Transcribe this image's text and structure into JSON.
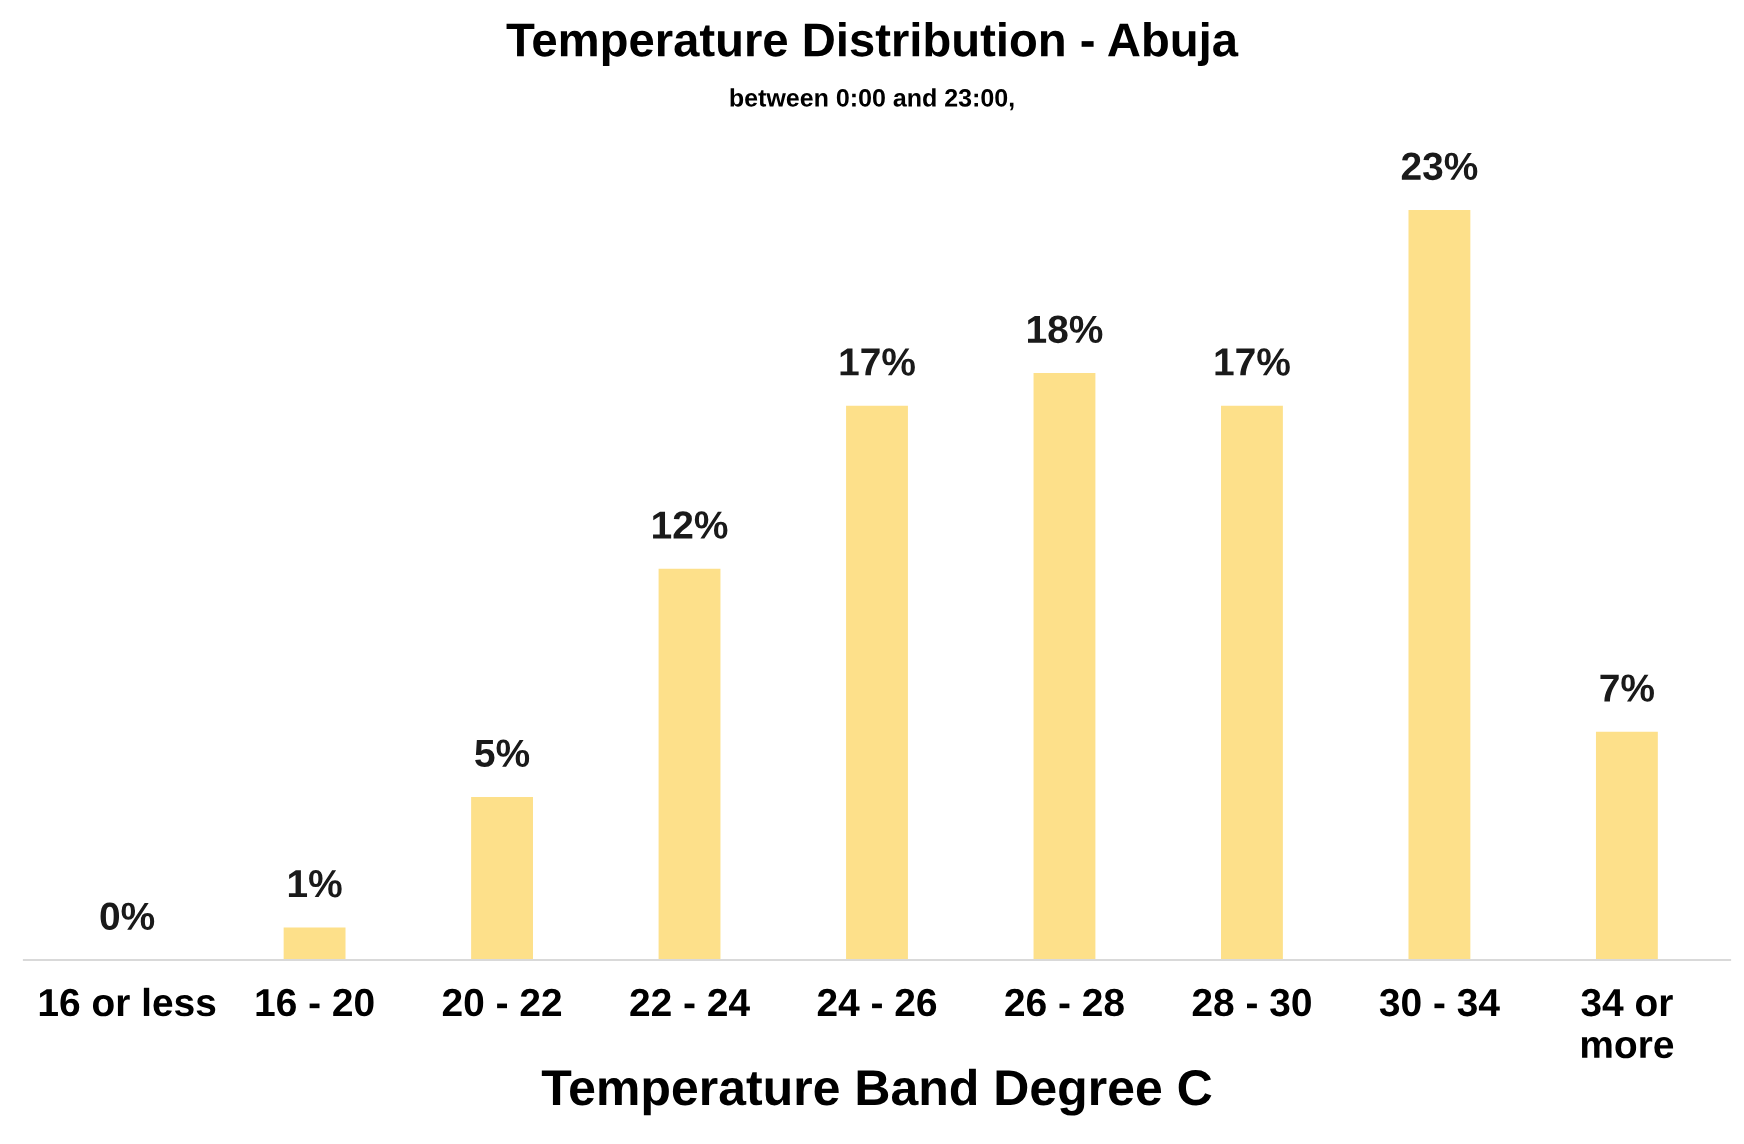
{
  "chart_data": {
    "type": "bar",
    "title": "Temperature Distribution - Abuja",
    "subtitle": "between 0:00 and 23:00,",
    "xlabel": "Temperature Band Degree C",
    "categories": [
      "16 or less",
      "16 - 20",
      "20 - 22",
      "22 - 24",
      "24 - 26",
      "26 - 28",
      "28 - 30",
      "30 - 34",
      "34 or\nmore"
    ],
    "values": [
      0,
      1,
      5,
      12,
      17,
      18,
      17,
      23,
      7
    ],
    "value_labels": [
      "0%",
      "1%",
      "5%",
      "12%",
      "17%",
      "18%",
      "17%",
      "23%",
      "7%"
    ],
    "color": "#fde08a",
    "grid": false,
    "legend": false
  }
}
